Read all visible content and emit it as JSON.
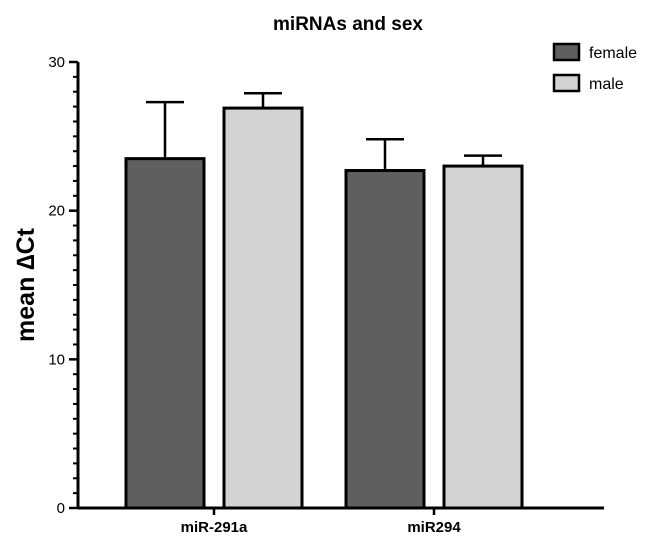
{
  "chart_data": {
    "type": "bar",
    "title": "miRNAs and sex",
    "xlabel": "",
    "ylabel": "mean ∆Ct",
    "ylim": [
      0,
      30
    ],
    "yticks": [
      0,
      10,
      20,
      30
    ],
    "y_minor_tick_step": 1,
    "categories": [
      "miR-291a",
      "miR294"
    ],
    "series": [
      {
        "name": "female",
        "color": "#5f5f5f",
        "values": [
          23.5,
          22.7
        ],
        "error_upper": [
          3.8,
          2.1
        ]
      },
      {
        "name": "male",
        "color": "#d3d3d3",
        "values": [
          26.9,
          23.0
        ],
        "error_upper": [
          1.0,
          0.7
        ]
      }
    ],
    "legend_position": "top-right",
    "grid": false
  }
}
